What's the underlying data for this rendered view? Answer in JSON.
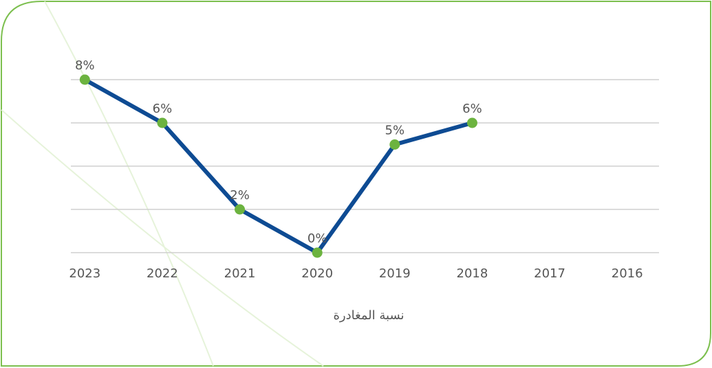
{
  "chart_data": {
    "type": "line",
    "title": "نسبة المغادرة",
    "categories": [
      "2023",
      "2022",
      "2021",
      "2020",
      "2019",
      "2018",
      "2017",
      "2016"
    ],
    "values": [
      8,
      6,
      2,
      0,
      5,
      6,
      null,
      null
    ],
    "value_labels": [
      "8%",
      "6%",
      "2%",
      "0%",
      "5%",
      "6%",
      null,
      null
    ],
    "color": "#0e4b93",
    "marker_color": "#6cb33f",
    "ylim": [
      0,
      8
    ],
    "yticks": [
      0,
      2,
      4,
      6,
      8
    ],
    "grid": true
  }
}
